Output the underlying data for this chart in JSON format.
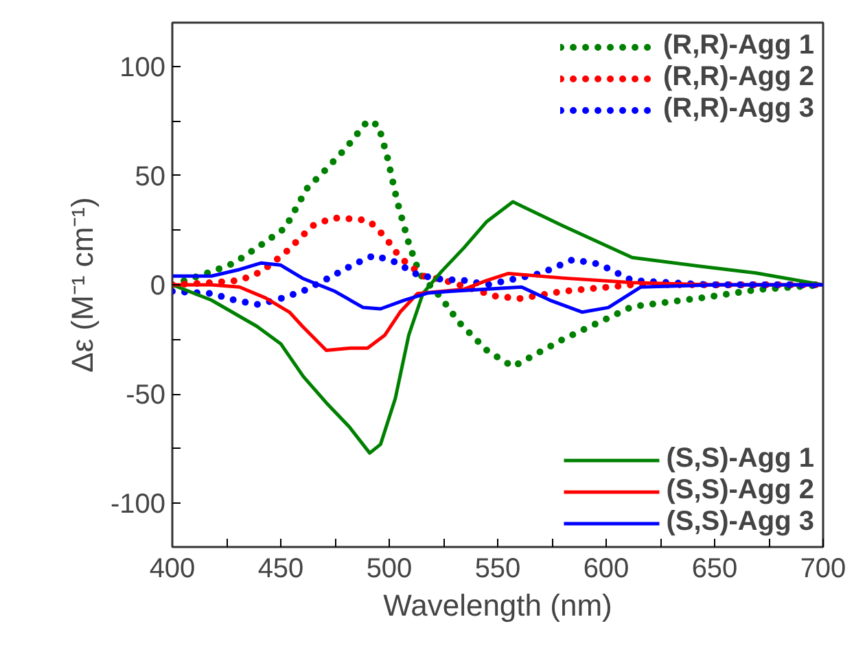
{
  "chart_data": {
    "type": "line",
    "xlabel": "Wavelength (nm)",
    "ylabel": "Δε (M⁻¹ cm⁻¹)",
    "xlim": [
      400,
      700
    ],
    "ylim": [
      -120,
      120
    ],
    "xticks": [
      400,
      {
        "value": 425,
        "label": null
      },
      450,
      {
        "value": 475,
        "label": null
      },
      500,
      {
        "value": 525,
        "label": null
      },
      550,
      {
        "value": 575,
        "label": null
      },
      600,
      {
        "value": 625,
        "label": null
      },
      650,
      {
        "value": 675,
        "label": null
      },
      700
    ],
    "yticks": [
      -100,
      {
        "value": -75,
        "label": null
      },
      -50,
      {
        "value": -25,
        "label": null
      },
      0,
      {
        "value": 25,
        "label": null
      },
      50,
      {
        "value": 75,
        "label": null
      },
      100
    ],
    "grid": false,
    "legend": "top right",
    "series": [
      {
        "name": "(R,R)-Agg 1",
        "color": "#008000",
        "line_style": "dotted",
        "x": [
          400,
          418,
          428.6,
          442,
          452,
          462,
          470,
          480,
          490,
          495,
          499,
          503.6,
          509,
          514,
          524,
          532,
          545,
          557,
          580,
          612,
          644,
          669,
          700
        ],
        "values": [
          0,
          6,
          10,
          19,
          26,
          44,
          52,
          62.5,
          75,
          73,
          59,
          38.5,
          19,
          5,
          -6,
          -17,
          -30,
          -37.5,
          -25,
          -10,
          -6,
          -2.3,
          0
        ]
      },
      {
        "name": "(R,R)-Agg 2",
        "color": "#ff0000",
        "line_style": "dotted",
        "x": [
          400,
          418,
          431,
          441,
          452,
          464.6,
          474,
          486,
          491,
          498,
          505,
          515.5,
          524,
          549,
          560,
          580,
          612,
          650,
          700
        ],
        "values": [
          0,
          1,
          2,
          6,
          14.6,
          27,
          30.6,
          30,
          29,
          22,
          12.5,
          4,
          2.5,
          -5.2,
          -6.3,
          -3,
          0,
          0,
          0
        ]
      },
      {
        "name": "(R,R)-Agg 3",
        "color": "#0000ff",
        "line_style": "dotted",
        "x": [
          400,
          418,
          428.6,
          439,
          447.7,
          460,
          470,
          483.7,
          493,
          502.8,
          513,
          524,
          534.5,
          545,
          569.8,
          584.6,
          597,
          612,
          647,
          700
        ],
        "values": [
          -3,
          -4,
          -7,
          -9,
          -7,
          -3,
          2,
          9.4,
          13.5,
          10.4,
          4.6,
          2.5,
          2,
          0,
          5.2,
          11.5,
          9.4,
          2,
          0,
          0
        ]
      },
      {
        "name": "(S,S)-Agg 1",
        "color": "#008000",
        "line_style": "solid",
        "x": [
          400,
          418,
          439,
          450,
          460.4,
          471,
          481.6,
          491,
          496,
          502.8,
          509,
          515.5,
          524,
          534.5,
          545,
          557,
          580,
          612,
          644,
          669,
          700
        ],
        "values": [
          0,
          -7,
          -19,
          -27,
          -42,
          -54,
          -65,
          -77,
          -73,
          -52,
          -23,
          -4,
          6,
          17,
          29,
          38,
          27,
          12.5,
          8.4,
          5.4,
          0
        ]
      },
      {
        "name": "(S,S)-Agg 2",
        "color": "#ff0000",
        "line_style": "solid",
        "x": [
          400,
          418,
          431,
          443,
          454,
          460,
          471,
          482,
          490,
          498,
          505,
          513,
          524,
          534.5,
          545,
          555,
          580,
          612,
          650,
          700
        ],
        "values": [
          0,
          0,
          -1,
          -6,
          -12.5,
          -19,
          -30,
          -29,
          -29,
          -23,
          -12.5,
          -4,
          -3,
          -2,
          2,
          5.2,
          3.1,
          1,
          0,
          0
        ]
      },
      {
        "name": "(S,S)-Agg 3",
        "color": "#0000ff",
        "line_style": "solid",
        "x": [
          400,
          418,
          431,
          441,
          450,
          460,
          475,
          488,
          496,
          507,
          517.6,
          528,
          545,
          561,
          574,
          589,
          601,
          616,
          650,
          700
        ],
        "values": [
          4,
          4,
          7,
          10,
          9,
          3,
          -3,
          -10.4,
          -11,
          -7,
          -3.8,
          -3,
          -2,
          -1,
          -7,
          -12.5,
          -10.4,
          -1,
          0,
          0
        ]
      }
    ]
  }
}
